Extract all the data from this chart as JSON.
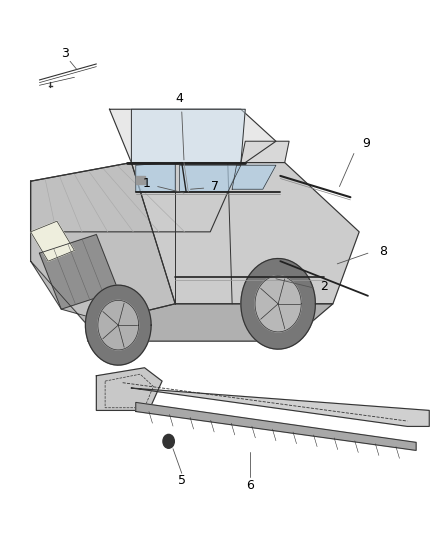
{
  "title": "",
  "background_color": "#ffffff",
  "fig_width": 4.38,
  "fig_height": 5.33,
  "dpi": 100,
  "label_fontsize": 9,
  "label_color": "#000000",
  "line_color": "#555555",
  "car_color": "#333333",
  "part_color": "#222222"
}
